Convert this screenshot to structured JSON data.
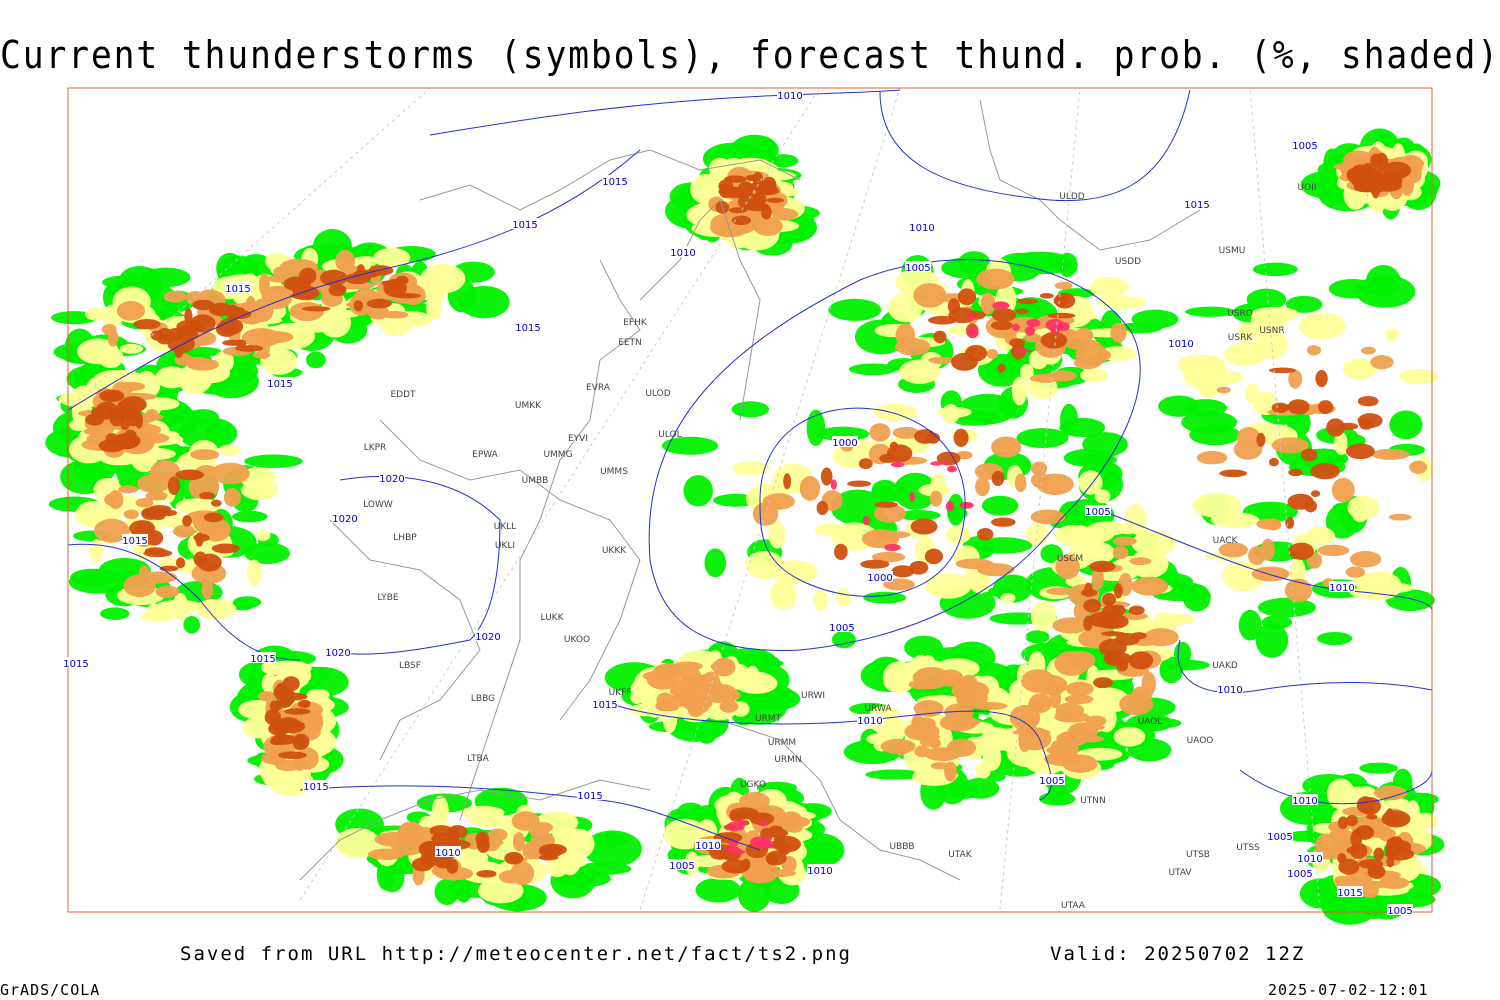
{
  "header": {
    "title": "Current thunderstorms (symbols), forecast thund. prob. (%, shaded)"
  },
  "footer": {
    "source": "Saved from URL http://meteocenter.net/fact/ts2.png",
    "valid": "Valid: 20250702 12Z",
    "credit": "GrADS/COLA",
    "timestamp": "2025-07-02-12:01"
  },
  "isobar_labels": [
    "1010",
    "1015",
    "1015",
    "1015",
    "1015",
    "1015",
    "1010",
    "1010",
    "1005",
    "1005",
    "1015",
    "1010",
    "1000",
    "1020",
    "1020",
    "1015",
    "1000",
    "1005",
    "1020",
    "1020",
    "1015",
    "1015",
    "1005",
    "1010",
    "1010",
    "1015",
    "1010",
    "1015",
    "1015",
    "1005",
    "1010",
    "1010",
    "1005",
    "1010",
    "1010",
    "1005",
    "1010",
    "1005",
    "1015",
    "1005"
  ],
  "stations": [
    "ULDD",
    "USMU",
    "USDD",
    "USRO",
    "USRK",
    "USNR",
    "UOII",
    "EFHK",
    "EETN",
    "EVRA",
    "ULOD",
    "UMKK",
    "EDDT",
    "EYVI",
    "ULOL",
    "UMMG",
    "LKPR",
    "EPWA",
    "UMBB",
    "UMMS",
    "LOWW",
    "UKLL",
    "UKLI",
    "LHBP",
    "UKKK",
    "LYBE",
    "LUKK",
    "UKOO",
    "LBSF",
    "LBBG",
    "UKFF",
    "URMT",
    "URMM",
    "URMN",
    "UGKO",
    "LTBA",
    "UTNN",
    "UAOL",
    "UAOO",
    "UAKD",
    "UACK",
    "USCM",
    "UTAK",
    "UTSB",
    "UTSS",
    "UTAV",
    "UTAA",
    "UBBB",
    "URWI",
    "URWA"
  ]
}
